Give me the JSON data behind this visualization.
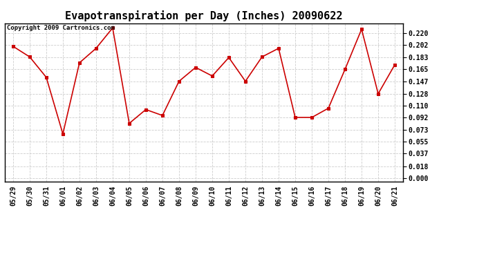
{
  "title": "Evapotranspiration per Day (Inches) 20090622",
  "copyright_text": "Copyright 2009 Cartronics.com",
  "x_labels": [
    "05/29",
    "05/30",
    "05/31",
    "06/01",
    "06/02",
    "06/03",
    "06/04",
    "06/05",
    "06/06",
    "06/07",
    "06/08",
    "06/09",
    "06/10",
    "06/11",
    "06/12",
    "06/13",
    "06/14",
    "06/15",
    "06/16",
    "06/17",
    "06/18",
    "06/19",
    "06/20",
    "06/21"
  ],
  "y_values": [
    0.2,
    0.184,
    0.153,
    0.067,
    0.175,
    0.197,
    0.228,
    0.083,
    0.104,
    0.095,
    0.147,
    0.168,
    0.155,
    0.183,
    0.147,
    0.184,
    0.197,
    0.092,
    0.092,
    0.106,
    0.165,
    0.226,
    0.128,
    0.172
  ],
  "line_color": "#cc0000",
  "marker": "s",
  "marker_size": 3,
  "background_color": "#ffffff",
  "plot_bg_color": "#ffffff",
  "grid_color": "#cccccc",
  "y_min": 0.0,
  "y_max": 0.228,
  "y_ticks": [
    0.0,
    0.018,
    0.037,
    0.055,
    0.073,
    0.092,
    0.11,
    0.128,
    0.147,
    0.165,
    0.183,
    0.202,
    0.22
  ],
  "title_fontsize": 11,
  "tick_fontsize": 7,
  "copyright_fontsize": 6.5
}
